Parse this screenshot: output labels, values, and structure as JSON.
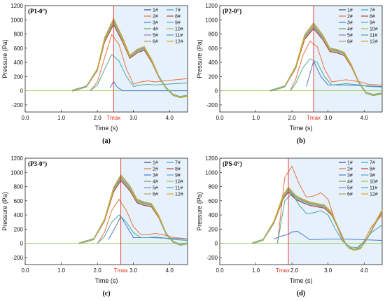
{
  "colors": {
    "series": [
      "#3f3f8c",
      "#e8743b",
      "#4a7bd0",
      "#6aa84f",
      "#8e7cc3",
      "#b5a05a",
      "#2ca6c9",
      "#c04040",
      "#5aa0d8",
      "#a0c050",
      "#48a8a0",
      "#d4a828"
    ],
    "tmax_line": "#e0301e",
    "shade": "#e6f1fb"
  },
  "chart_data": [
    {
      "type": "line",
      "title": "(P1-0°)",
      "caption": "(a)",
      "xlabel": "Time (s)",
      "ylabel": "Pressure (Pa)",
      "xlim": [
        0,
        4.5
      ],
      "ylim": [
        -300,
        1200
      ],
      "xticks": [
        "0.0",
        "1.0",
        "2.0",
        "3.0",
        "4.0"
      ],
      "yticks": [
        "-200",
        "0",
        "200",
        "400",
        "600",
        "800",
        "1000",
        "1200"
      ],
      "tmax": {
        "label": "Tmax",
        "x": 2.45
      },
      "legend": [
        "1#",
        "2#",
        "3#",
        "4#",
        "5#",
        "6#",
        "7#",
        "8#",
        "9#",
        "10#",
        "11#",
        "12#"
      ],
      "legend_position": "top-right",
      "main_curve": {
        "x": [
          1.3,
          1.7,
          2.0,
          2.2,
          2.45,
          2.7,
          2.9,
          3.1,
          3.3,
          3.5,
          3.7,
          3.9,
          4.1,
          4.3,
          4.5
        ],
        "y": [
          0,
          60,
          300,
          720,
          980,
          720,
          480,
          560,
          600,
          430,
          200,
          40,
          -60,
          -90,
          -70
        ]
      },
      "secondary_curve": {
        "x": [
          1.8,
          2.0,
          2.2,
          2.4,
          2.6,
          2.8,
          3.0,
          3.2,
          3.4,
          3.6,
          4.0,
          4.5
        ],
        "y": [
          0,
          80,
          300,
          510,
          420,
          200,
          60,
          80,
          90,
          80,
          95,
          110
        ]
      },
      "low_curve": {
        "x": [
          2.35,
          2.45,
          2.55,
          2.7,
          3.0,
          3.5,
          4.0,
          4.5
        ],
        "y": [
          40,
          130,
          50,
          0,
          0,
          0,
          0,
          0
        ]
      }
    },
    {
      "type": "line",
      "title": "(P2-0°)",
      "caption": "(b)",
      "xlabel": "Time (s)",
      "ylabel": "Pressure (Pa)",
      "xlim": [
        0,
        4.5
      ],
      "ylim": [
        -300,
        1200
      ],
      "xticks": [
        "0.0",
        "1.0",
        "2.0",
        "3.0",
        "4.0"
      ],
      "yticks": [
        "-200",
        "0",
        "200",
        "400",
        "600",
        "800",
        "1000",
        "1200"
      ],
      "tmax": {
        "label": "Tmax",
        "x": 2.6
      },
      "legend": [
        "1#",
        "2#",
        "3#",
        "4#",
        "5#",
        "6#",
        "7#",
        "8#",
        "9#",
        "10#",
        "11#",
        "12#"
      ],
      "legend_position": "top-right",
      "main_curve": {
        "x": [
          1.4,
          1.8,
          2.1,
          2.35,
          2.6,
          2.85,
          3.05,
          3.25,
          3.45,
          3.65,
          3.85,
          4.05,
          4.25,
          4.5
        ],
        "y": [
          0,
          60,
          330,
          760,
          920,
          760,
          580,
          560,
          520,
          350,
          120,
          -30,
          -60,
          -40
        ]
      },
      "secondary_curve": {
        "x": [
          1.95,
          2.1,
          2.3,
          2.5,
          2.7,
          2.9,
          3.1,
          3.3,
          3.5,
          3.7,
          3.9,
          4.1,
          4.5
        ],
        "y": [
          0,
          100,
          320,
          450,
          400,
          200,
          80,
          90,
          100,
          90,
          80,
          60,
          50
        ]
      },
      "low_curve": {
        "x": [
          2.4,
          2.6,
          2.8,
          3.0,
          3.5,
          4.0,
          4.5
        ],
        "y": [
          60,
          420,
          200,
          80,
          80,
          70,
          60
        ]
      }
    },
    {
      "type": "line",
      "title": "(P3-0°)",
      "caption": "(c)",
      "xlabel": "Time (s)",
      "ylabel": "Pressure (Pa)",
      "xlim": [
        0,
        4.5
      ],
      "ylim": [
        -300,
        1200
      ],
      "xticks": [
        "0.0",
        "1.0",
        "2.0",
        "3.0",
        "4.0"
      ],
      "yticks": [
        "-200",
        "0",
        "200",
        "400",
        "600",
        "800",
        "1000",
        "1200"
      ],
      "tmax": {
        "label": "Tmax",
        "x": 2.65
      },
      "legend": [
        "1#",
        "2#",
        "3#",
        "4#",
        "5#",
        "6#",
        "7#",
        "8#",
        "9#",
        "10#",
        "11#",
        "12#"
      ],
      "legend_position": "top-right",
      "main_curve": {
        "x": [
          1.5,
          1.9,
          2.2,
          2.45,
          2.65,
          2.9,
          3.1,
          3.3,
          3.5,
          3.7,
          3.9,
          4.1,
          4.3,
          4.5
        ],
        "y": [
          0,
          60,
          330,
          760,
          930,
          780,
          600,
          560,
          540,
          380,
          140,
          20,
          -20,
          0
        ]
      },
      "secondary_curve": {
        "x": [
          2.0,
          2.2,
          2.4,
          2.6,
          2.8,
          3.0,
          3.2,
          3.4,
          3.6,
          3.8,
          4.0,
          4.2,
          4.5
        ],
        "y": [
          0,
          100,
          300,
          400,
          300,
          150,
          80,
          80,
          90,
          80,
          60,
          50,
          40
        ]
      },
      "low_curve": {
        "x": [
          2.3,
          2.5,
          2.65,
          2.8,
          3.0,
          3.5,
          4.0,
          4.5
        ],
        "y": [
          50,
          230,
          380,
          250,
          80,
          80,
          70,
          60
        ]
      }
    },
    {
      "type": "line",
      "title": "(PS-0°)",
      "caption": "(d)",
      "xlabel": "Time (s)",
      "ylabel": "Pressure (Pa)",
      "xlim": [
        0,
        4.5
      ],
      "ylim": [
        -300,
        1200
      ],
      "xticks": [
        "0.0",
        "1.0",
        "",
        "3.0",
        "4.0"
      ],
      "extra_tick": "2.0",
      "yticks": [
        "-200",
        "0",
        "200",
        "400",
        "600",
        "800",
        "1000",
        "1200"
      ],
      "tmax": {
        "label": "Tmax",
        "x": 1.9
      },
      "legend": [
        "1#",
        "2#",
        "3#",
        "4#",
        "5#",
        "6#",
        "7#",
        "8#",
        "9#",
        "10#",
        "11#",
        "12#"
      ],
      "legend_position": "top-right",
      "main_curve": {
        "x": [
          0.9,
          1.2,
          1.5,
          1.75,
          1.9,
          2.1,
          2.3,
          2.5,
          2.7,
          2.9,
          3.1,
          3.3,
          3.5,
          3.7,
          3.9,
          4.1,
          4.3,
          4.5
        ],
        "y": [
          0,
          50,
          300,
          650,
          760,
          650,
          600,
          560,
          540,
          520,
          420,
          200,
          -20,
          -90,
          -70,
          80,
          280,
          460
        ]
      },
      "secondary_curve": {
        "x": [
          1.6,
          1.8,
          2.0,
          2.2,
          2.4,
          2.6,
          2.8,
          3.0,
          3.2,
          3.4,
          3.6,
          3.8,
          4.0,
          4.2,
          4.5
        ],
        "y": [
          0,
          600,
          700,
          540,
          420,
          430,
          460,
          400,
          200,
          30,
          -50,
          -60,
          20,
          150,
          260
        ]
      },
      "low_curve": {
        "x": [
          1.5,
          1.7,
          1.9,
          2.0,
          2.15,
          2.3,
          2.5,
          3.0,
          3.5,
          4.0,
          4.5
        ],
        "y": [
          60,
          100,
          130,
          160,
          170,
          120,
          50,
          60,
          60,
          50,
          40
        ]
      }
    }
  ]
}
